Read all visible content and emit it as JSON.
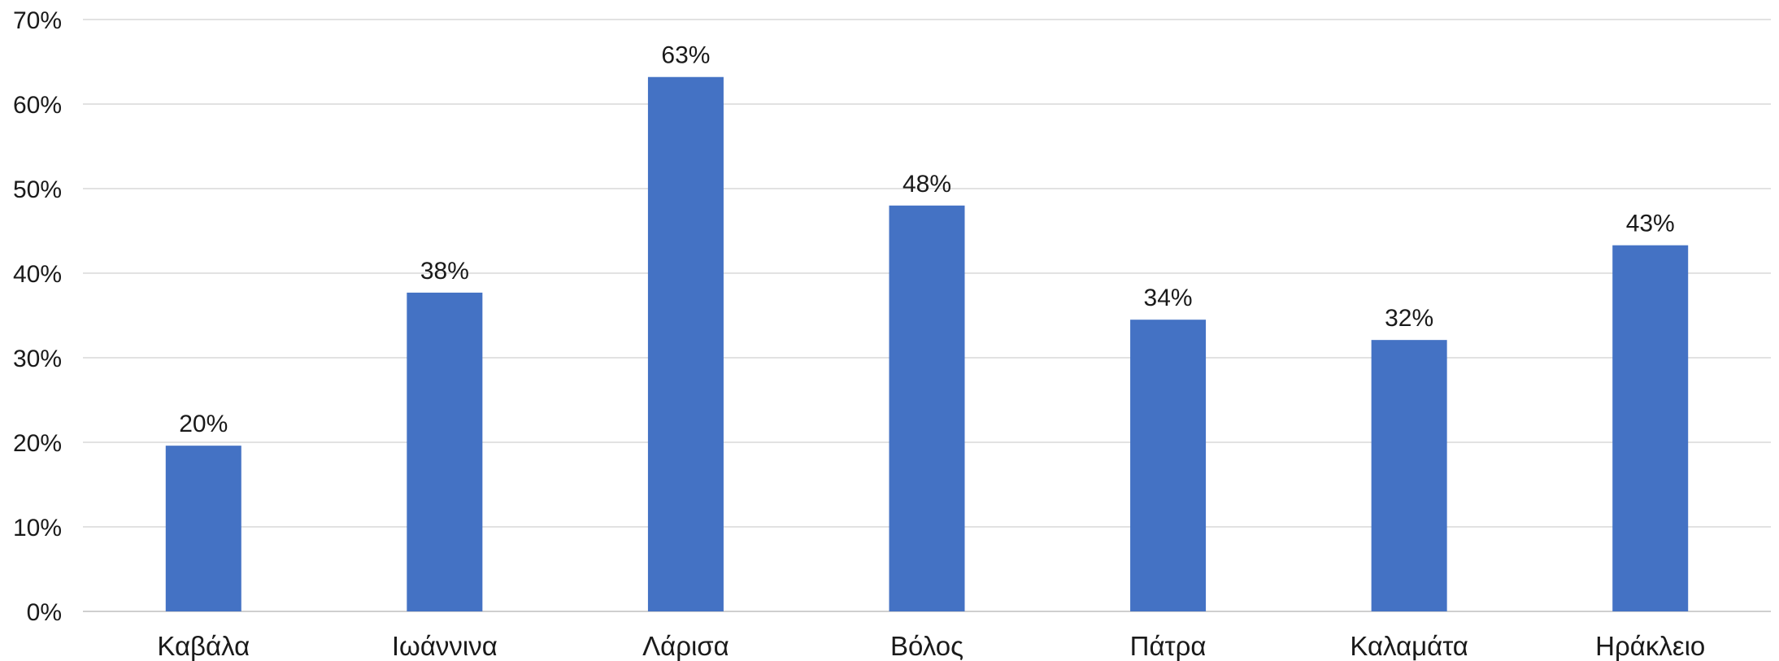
{
  "chart_data": {
    "type": "bar",
    "categories": [
      "Καβάλα",
      "Ιωάννινα",
      "Λάρισα",
      "Βόλος",
      "Πάτρα",
      "Καλαμάτα",
      "Ηράκλειο"
    ],
    "values": [
      19.6,
      37.7,
      63.2,
      48.0,
      34.5,
      32.1,
      43.3
    ],
    "data_labels": [
      "20%",
      "38%",
      "63%",
      "48%",
      "34%",
      "32%",
      "43%"
    ],
    "y_ticks": [
      "0%",
      "10%",
      "20%",
      "30%",
      "40%",
      "50%",
      "60%",
      "70%"
    ],
    "ylim": [
      0,
      70
    ],
    "grid": true,
    "legend": "none",
    "title": "",
    "xlabel": "",
    "ylabel": "",
    "bar_color": "#4472C4"
  }
}
